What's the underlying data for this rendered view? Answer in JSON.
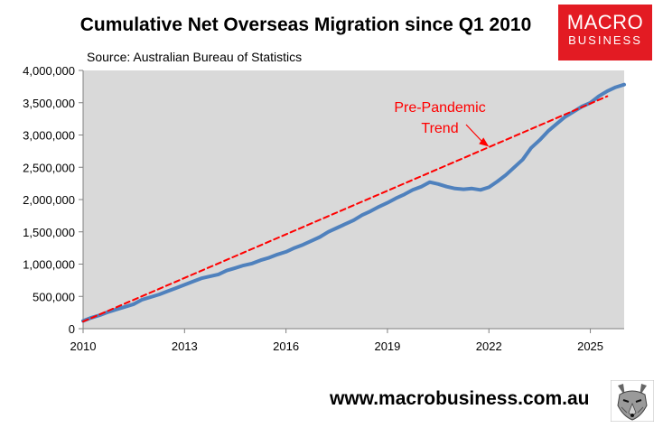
{
  "title": "Cumulative Net Overseas Migration since Q1 2010",
  "logo": {
    "line1": "MACRO",
    "line2": "BUSINESS",
    "color": "#e31b23"
  },
  "website": "www.macrobusiness.com.au",
  "wolf_icon": "wolf-head-icon",
  "chart_data": {
    "type": "line",
    "title": "Cumulative Net Overseas Migration since Q1 2010",
    "subtitle": "Source: Australian Bureau of Statistics",
    "xlabel": "",
    "ylabel": "",
    "xlim": [
      2010,
      2025.5
    ],
    "ylim": [
      0,
      4000000
    ],
    "yticks": [
      0,
      500000,
      1000000,
      1500000,
      2000000,
      2500000,
      3000000,
      3500000,
      4000000
    ],
    "ytick_labels": [
      "0",
      "500,000",
      "1,000,000",
      "1,500,000",
      "2,000,000",
      "2,500,000",
      "3,000,000",
      "3,500,000",
      "4,000,000"
    ],
    "xticks": [
      2010,
      2013,
      2016,
      2019,
      2022,
      2025
    ],
    "xtick_labels": [
      "2010",
      "2013",
      "2016",
      "2019",
      "2022",
      "2025"
    ],
    "grid": false,
    "plot_background": "#d9d9d9",
    "series": [
      {
        "name": "",
        "style": "solid",
        "color": "#4f81bd",
        "points": [
          [
            2010.0,
            120000
          ],
          [
            2010.25,
            170000
          ],
          [
            2010.5,
            210000
          ],
          [
            2010.75,
            260000
          ],
          [
            2011.0,
            300000
          ],
          [
            2011.25,
            340000
          ],
          [
            2011.5,
            380000
          ],
          [
            2011.75,
            450000
          ],
          [
            2012.0,
            490000
          ],
          [
            2012.25,
            530000
          ],
          [
            2012.5,
            580000
          ],
          [
            2012.75,
            630000
          ],
          [
            2013.0,
            680000
          ],
          [
            2013.25,
            730000
          ],
          [
            2013.5,
            780000
          ],
          [
            2013.75,
            810000
          ],
          [
            2014.0,
            840000
          ],
          [
            2014.25,
            900000
          ],
          [
            2014.5,
            940000
          ],
          [
            2014.75,
            980000
          ],
          [
            2015.0,
            1010000
          ],
          [
            2015.25,
            1060000
          ],
          [
            2015.5,
            1100000
          ],
          [
            2015.75,
            1150000
          ],
          [
            2016.0,
            1190000
          ],
          [
            2016.25,
            1250000
          ],
          [
            2016.5,
            1300000
          ],
          [
            2016.75,
            1360000
          ],
          [
            2017.0,
            1420000
          ],
          [
            2017.25,
            1500000
          ],
          [
            2017.5,
            1560000
          ],
          [
            2017.75,
            1620000
          ],
          [
            2018.0,
            1680000
          ],
          [
            2018.25,
            1760000
          ],
          [
            2018.5,
            1820000
          ],
          [
            2018.75,
            1890000
          ],
          [
            2019.0,
            1950000
          ],
          [
            2019.25,
            2020000
          ],
          [
            2019.5,
            2080000
          ],
          [
            2019.75,
            2150000
          ],
          [
            2020.0,
            2200000
          ],
          [
            2020.25,
            2270000
          ],
          [
            2020.5,
            2240000
          ],
          [
            2020.75,
            2200000
          ],
          [
            2021.0,
            2170000
          ],
          [
            2021.25,
            2160000
          ],
          [
            2021.5,
            2170000
          ],
          [
            2021.75,
            2150000
          ],
          [
            2022.0,
            2190000
          ],
          [
            2022.25,
            2280000
          ],
          [
            2022.5,
            2380000
          ],
          [
            2022.75,
            2500000
          ],
          [
            2023.0,
            2620000
          ],
          [
            2023.25,
            2800000
          ],
          [
            2023.5,
            2920000
          ],
          [
            2023.75,
            3060000
          ],
          [
            2024.0,
            3170000
          ],
          [
            2024.25,
            3280000
          ],
          [
            2024.5,
            3360000
          ],
          [
            2024.75,
            3440000
          ],
          [
            2025.0,
            3500000
          ],
          [
            2025.25,
            3600000
          ],
          [
            2025.5,
            3680000
          ],
          [
            2025.75,
            3740000
          ],
          [
            2026.0,
            3780000
          ]
        ]
      },
      {
        "name": "Pre-Pandemic Trend",
        "style": "dashed",
        "color": "#ff0000",
        "points": [
          [
            2010.0,
            110000
          ],
          [
            2025.5,
            3600000
          ]
        ]
      }
    ],
    "annotations": [
      {
        "text_line1": "Pre-Pandemic",
        "text_line2": "Trend",
        "color": "#ff0000",
        "arrow_to": [
          2022.0,
          2820000
        ]
      }
    ]
  }
}
